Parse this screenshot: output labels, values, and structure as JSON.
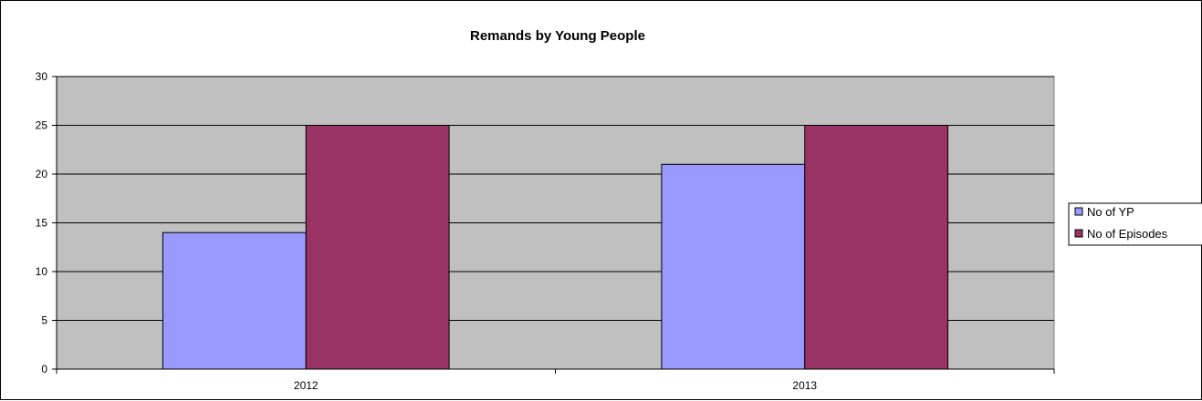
{
  "chart_data": {
    "type": "bar",
    "title": "Remands by Young People",
    "xlabel": "",
    "ylabel": "",
    "categories": [
      "2012",
      "2013"
    ],
    "series": [
      {
        "name": "No of YP",
        "values": [
          14,
          21
        ],
        "color": "#9999ff"
      },
      {
        "name": "No of Episodes",
        "values": [
          25,
          25
        ],
        "color": "#993366"
      }
    ],
    "ylim": [
      0,
      30
    ],
    "ytick_step": 5,
    "grid": true,
    "plot_background": "#c0c0c0",
    "legend_position": "right"
  }
}
